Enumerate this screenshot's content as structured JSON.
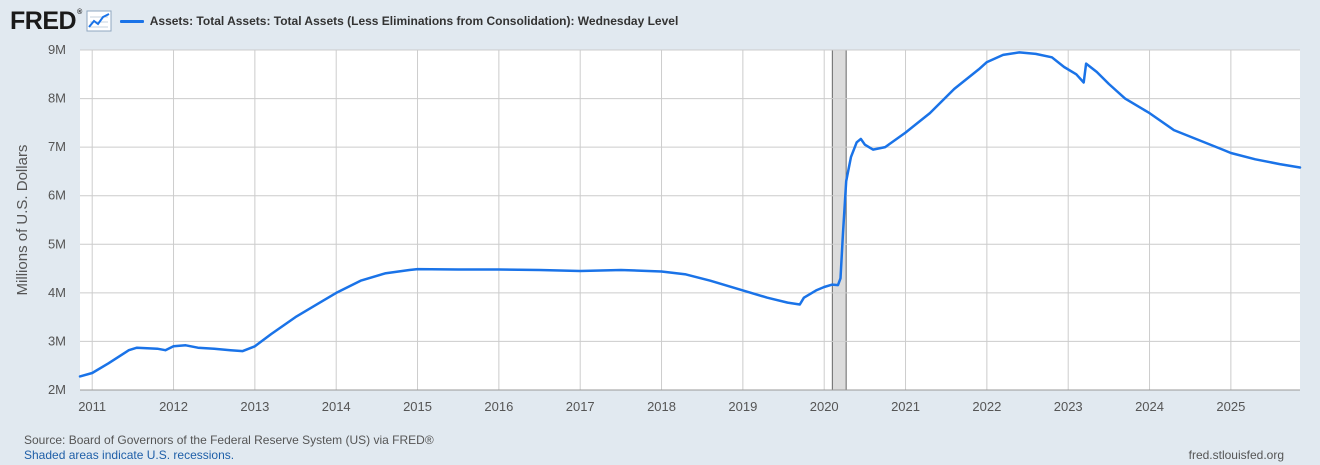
{
  "header": {
    "logo": "FRED",
    "logo_reg": "®",
    "series_title": "Assets: Total Assets: Total Assets (Less Eliminations from Consolidation): Wednesday Level"
  },
  "footer": {
    "source": "Source: Board of Governors of the Federal Reserve System (US) via FRED®",
    "shaded_note": "Shaded areas indicate U.S. recessions.",
    "url": "fred.stlouisfed.org"
  },
  "colors": {
    "line": "#1a73e8",
    "plot_bg": "#ffffff",
    "page_bg": "#e1e9f0",
    "grid": "#cccccc",
    "recession": "#dcdcdc"
  },
  "chart_data": {
    "type": "line",
    "title": "Assets: Total Assets: Total Assets (Less Eliminations from Consolidation): Wednesday Level",
    "xlabel": "",
    "ylabel": "Millions of U.S. Dollars",
    "xlim": [
      2010.85,
      2025.85
    ],
    "ylim": [
      2.0,
      9.0
    ],
    "y_ticks": [
      2,
      3,
      4,
      5,
      6,
      7,
      8,
      9
    ],
    "y_tick_labels": [
      "2M",
      "3M",
      "4M",
      "5M",
      "6M",
      "7M",
      "8M",
      "9M"
    ],
    "x_ticks": [
      2011,
      2012,
      2013,
      2014,
      2015,
      2016,
      2017,
      2018,
      2019,
      2020,
      2021,
      2022,
      2023,
      2024,
      2025
    ],
    "x_tick_labels": [
      "2011",
      "2012",
      "2013",
      "2014",
      "2015",
      "2016",
      "2017",
      "2018",
      "2019",
      "2020",
      "2021",
      "2022",
      "2023",
      "2024",
      "2025"
    ],
    "grid": true,
    "recessions": [
      [
        2020.1,
        2020.27
      ]
    ],
    "series": [
      {
        "name": "Assets: Total Assets: Total Assets (Less Eliminations from Consolidation): Wednesday Level",
        "x": [
          2010.85,
          2011.0,
          2011.2,
          2011.45,
          2011.55,
          2011.8,
          2011.9,
          2012.0,
          2012.15,
          2012.3,
          2012.5,
          2012.7,
          2012.85,
          2013.0,
          2013.2,
          2013.5,
          2013.8,
          2014.0,
          2014.3,
          2014.6,
          2014.9,
          2015.0,
          2015.5,
          2016.0,
          2016.5,
          2017.0,
          2017.5,
          2018.0,
          2018.3,
          2018.6,
          2019.0,
          2019.3,
          2019.55,
          2019.7,
          2019.75,
          2019.9,
          2020.0,
          2020.1,
          2020.17,
          2020.2,
          2020.23,
          2020.27,
          2020.33,
          2020.4,
          2020.45,
          2020.5,
          2020.6,
          2020.75,
          2021.0,
          2021.3,
          2021.6,
          2021.9,
          2022.0,
          2022.2,
          2022.4,
          2022.6,
          2022.8,
          2022.95,
          2023.1,
          2023.19,
          2023.22,
          2023.35,
          2023.5,
          2023.7,
          2024.0,
          2024.3,
          2024.6,
          2024.9,
          2025.0,
          2025.3,
          2025.6,
          2025.85
        ],
        "values": [
          2.28,
          2.35,
          2.55,
          2.82,
          2.87,
          2.85,
          2.82,
          2.9,
          2.92,
          2.87,
          2.85,
          2.82,
          2.8,
          2.9,
          3.15,
          3.5,
          3.8,
          4.0,
          4.25,
          4.4,
          4.47,
          4.49,
          4.48,
          4.48,
          4.47,
          4.45,
          4.47,
          4.44,
          4.38,
          4.25,
          4.05,
          3.9,
          3.8,
          3.76,
          3.9,
          4.05,
          4.12,
          4.17,
          4.16,
          4.3,
          5.2,
          6.3,
          6.8,
          7.1,
          7.17,
          7.05,
          6.95,
          7.0,
          7.3,
          7.7,
          8.2,
          8.6,
          8.75,
          8.9,
          8.95,
          8.92,
          8.85,
          8.65,
          8.5,
          8.33,
          8.72,
          8.55,
          8.3,
          8.0,
          7.7,
          7.35,
          7.15,
          6.95,
          6.88,
          6.75,
          6.65,
          6.58
        ]
      }
    ]
  }
}
